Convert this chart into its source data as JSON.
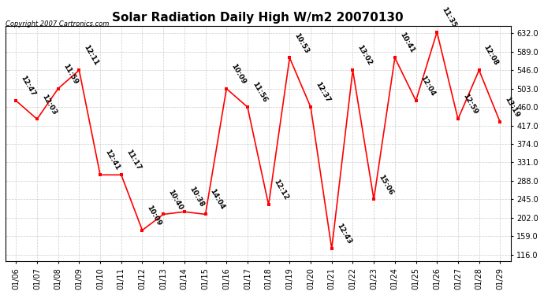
{
  "title": "Solar Radiation Daily High W/m2 20070130",
  "copyright": "Copyright 2007 Cartronics.com",
  "dates": [
    "01/06",
    "01/07",
    "01/08",
    "01/09",
    "01/10",
    "01/11",
    "01/12",
    "01/13",
    "01/14",
    "01/15",
    "01/16",
    "01/17",
    "01/18",
    "01/19",
    "01/20",
    "01/21",
    "01/22",
    "01/23",
    "01/24",
    "01/25",
    "01/26",
    "01/27",
    "01/28",
    "01/29"
  ],
  "values": [
    475,
    432,
    503,
    546,
    302,
    302,
    173,
    210,
    216,
    210,
    503,
    460,
    232,
    575,
    460,
    130,
    546,
    245,
    575,
    475,
    635,
    432,
    546,
    425
  ],
  "labels": [
    "12:47",
    "12:03",
    "11:59",
    "12:11",
    "12:41",
    "11:17",
    "10:09",
    "10:40",
    "10:38",
    "14:04",
    "10:09",
    "11:56",
    "12:12",
    "10:53",
    "12:37",
    "12:43",
    "13:02",
    "15:06",
    "10:41",
    "12:04",
    "11:35",
    "12:59",
    "12:08",
    "13:19"
  ],
  "line_color": "#ff0000",
  "marker_color": "#ff0000",
  "background_color": "#ffffff",
  "grid_color": "#cccccc",
  "title_fontsize": 11,
  "label_fontsize": 6.5,
  "yticks": [
    116.0,
    159.0,
    202.0,
    245.0,
    288.0,
    331.0,
    374.0,
    417.0,
    460.0,
    503.0,
    546.0,
    589.0,
    632.0
  ],
  "ylim": [
    100,
    650
  ],
  "text_color": "#000000",
  "xtick_fontsize": 7,
  "ytick_fontsize": 7
}
